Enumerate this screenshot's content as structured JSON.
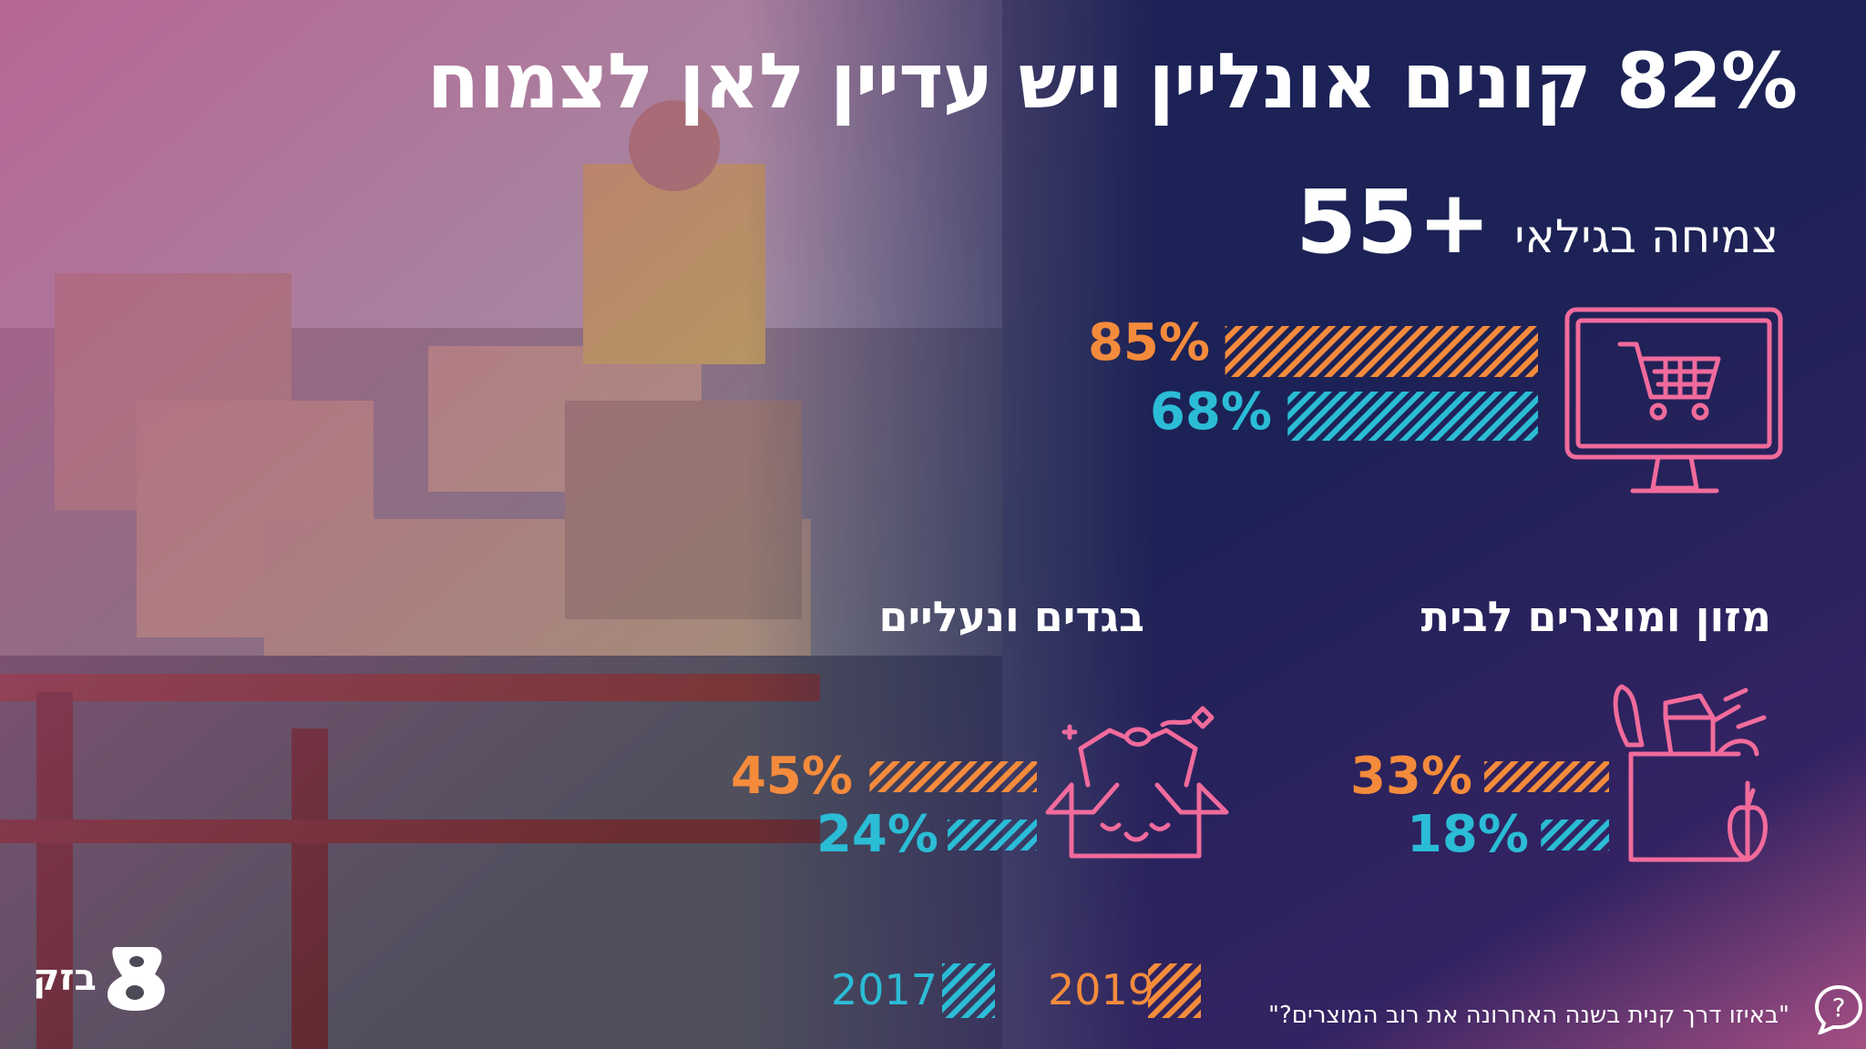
{
  "header": {
    "title": "82% קונים אונליין ויש עדיין לאן לצמוח",
    "subtitle_text": "צמיחה בגילאי",
    "subtitle_age": "55+"
  },
  "categories": {
    "online": {
      "label_2019": "85%",
      "label_2017": "68%",
      "icon": "monitor-shopping-cart-icon"
    },
    "food": {
      "title": "מזון ומוצרים לבית",
      "label_2019": "33%",
      "label_2017": "18%",
      "icon": "grocery-bag-icon"
    },
    "clothes": {
      "title": "בגדים ונעליים",
      "label_2019": "45%",
      "label_2017": "24%",
      "icon": "clothing-box-icon"
    }
  },
  "legend": {
    "year_2017": "2017",
    "year_2019": "2019"
  },
  "footnote": "\"באיזו דרך קנית בשנה האחרונה את רוב המוצרים?\"",
  "logo": {
    "text": "בזק",
    "icon": "bezeq-8-logo-icon"
  },
  "colors": {
    "orange": "#f48b3c",
    "teal": "#2bbcd6",
    "pink": "#f06b9c",
    "navy": "#1c2354"
  },
  "chart_data": [
    {
      "type": "bar",
      "categories": [
        "2019",
        "2017"
      ],
      "values": [
        85,
        68
      ],
      "xlabel": "",
      "ylabel": "",
      "xlim": [
        0,
        100
      ]
    },
    {
      "type": "bar",
      "title": "מזון ומוצרים לבית",
      "categories": [
        "2019",
        "2017"
      ],
      "values": [
        33,
        18
      ],
      "xlabel": "",
      "ylabel": "",
      "xlim": [
        0,
        100
      ]
    },
    {
      "type": "bar",
      "title": "בגדים ונעליים",
      "categories": [
        "2019",
        "2017"
      ],
      "values": [
        45,
        24
      ],
      "xlabel": "",
      "ylabel": "",
      "xlim": [
        0,
        100
      ]
    }
  ]
}
